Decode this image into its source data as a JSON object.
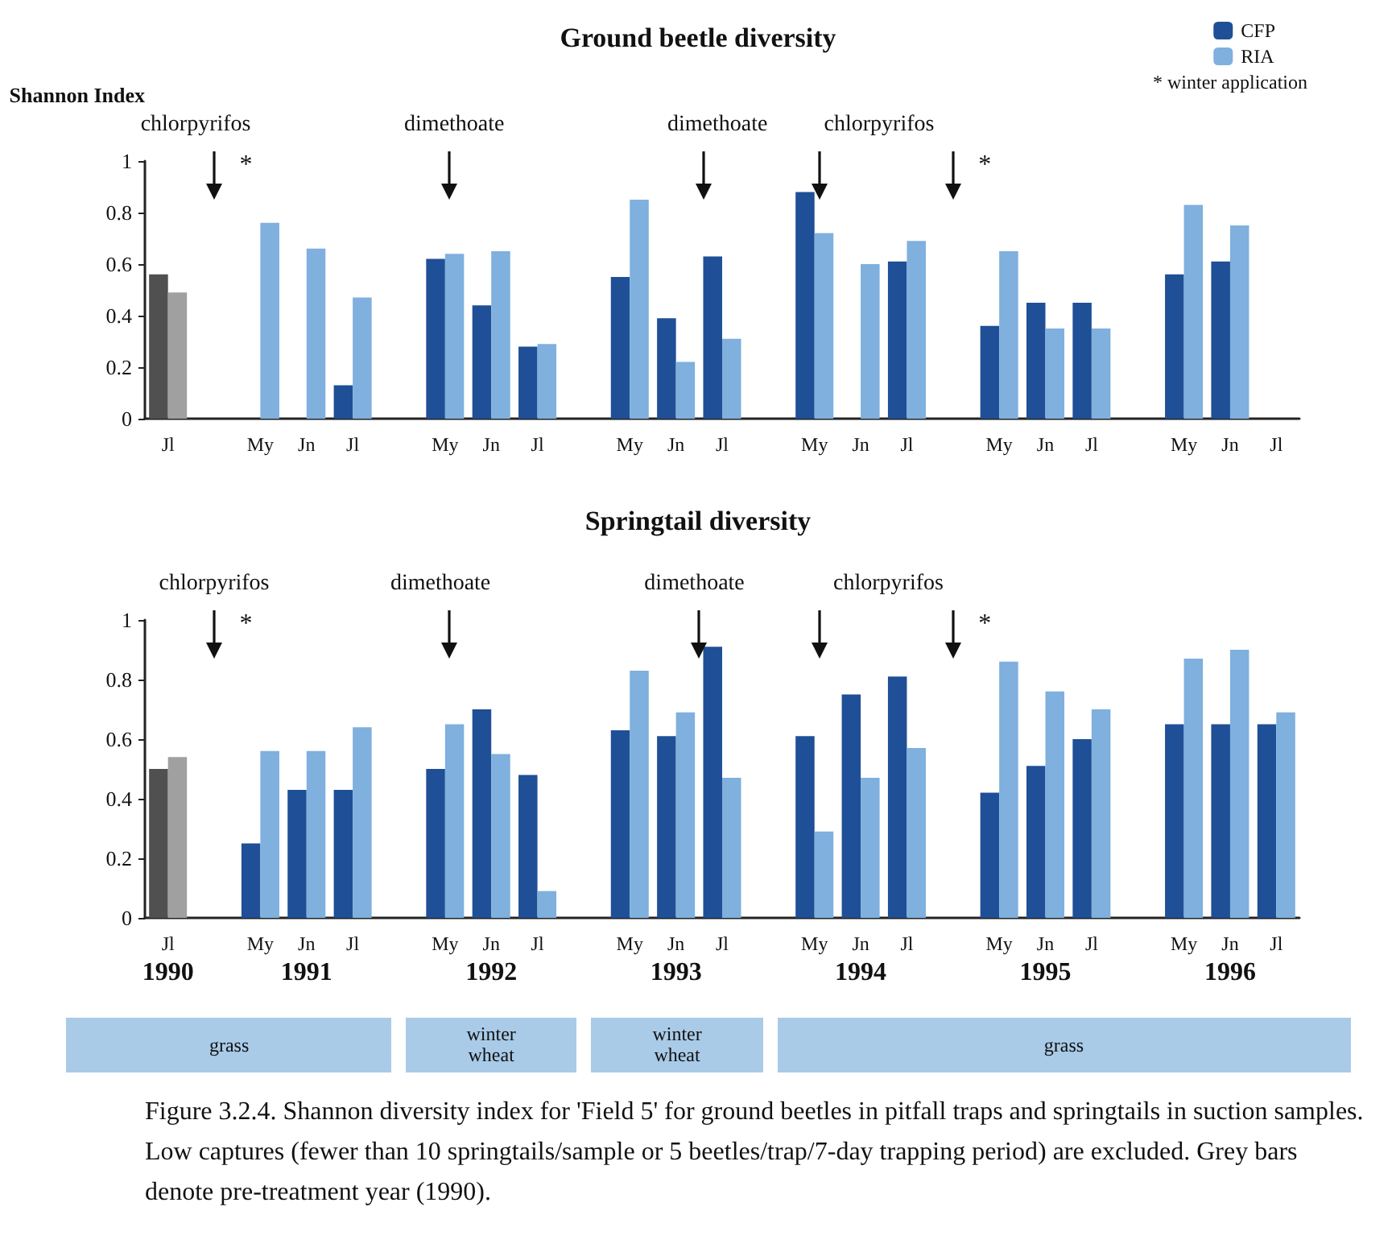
{
  "chart_data": [
    {
      "type": "bar",
      "title": "Ground beetle diversity",
      "ylabel": "Shannon Index",
      "categories": [
        "Jl",
        null,
        "My",
        "Jn",
        "Jl",
        null,
        "My",
        "Jn",
        "Jl",
        null,
        "My",
        "Jn",
        "Jl",
        null,
        "My",
        "Jn",
        "Jl",
        null,
        "My",
        "Jn",
        "Jl",
        null,
        "My",
        "Jn",
        "Jl"
      ],
      "series": [
        {
          "name": "CFP",
          "color": "#1f4f96",
          "colors": [
            "#505050",
            "#1f4f96",
            "#1f4f96",
            "#1f4f96",
            "#1f4f96",
            "#1f4f96",
            "#1f4f96",
            "#1f4f96",
            "#1f4f96",
            "#1f4f96",
            "#1f4f96",
            "#1f4f96",
            "#1f4f96",
            "#1f4f96",
            "#1f4f96",
            "#1f4f96",
            "#1f4f96",
            "#1f4f96",
            "#1f4f96",
            "#1f4f96",
            "#1f4f96",
            "#1f4f96",
            "#1f4f96",
            "#1f4f96",
            "#1f4f96"
          ],
          "values": [
            0.56,
            null,
            null,
            null,
            0.13,
            null,
            0.62,
            0.44,
            0.28,
            null,
            0.55,
            0.39,
            0.63,
            null,
            0.88,
            null,
            0.61,
            null,
            0.36,
            0.45,
            0.45,
            null,
            0.56,
            0.61,
            null
          ]
        },
        {
          "name": "RIA",
          "color": "#7fb0de",
          "colors": [
            "#a0a0a0",
            "#7fb0de",
            "#7fb0de",
            "#7fb0de",
            "#7fb0de",
            "#7fb0de",
            "#7fb0de",
            "#7fb0de",
            "#7fb0de",
            "#7fb0de",
            "#7fb0de",
            "#7fb0de",
            "#7fb0de",
            "#7fb0de",
            "#7fb0de",
            "#7fb0de",
            "#7fb0de",
            "#7fb0de",
            "#7fb0de",
            "#7fb0de",
            "#7fb0de",
            "#7fb0de",
            "#7fb0de",
            "#7fb0de",
            "#7fb0de"
          ],
          "values": [
            0.49,
            null,
            0.76,
            0.66,
            0.47,
            null,
            0.64,
            0.65,
            0.29,
            null,
            0.85,
            0.22,
            0.31,
            null,
            0.72,
            0.6,
            0.69,
            null,
            0.65,
            0.35,
            0.35,
            null,
            0.83,
            0.75,
            null
          ]
        }
      ],
      "ylim": [
        0,
        1
      ],
      "yticks": [
        0,
        0.2,
        0.4,
        0.6,
        0.8,
        1
      ],
      "grid": false,
      "legend": "top right",
      "annotations": [
        "chlorpyrifos",
        "*",
        "dimethoate",
        "dimethoate",
        "chlorpyrifos",
        "*",
        "* winter application"
      ]
    },
    {
      "type": "bar",
      "title": "Springtail diversity",
      "categories": [
        "Jl\n1990",
        null,
        "My",
        "Jn\n1991",
        "Jl",
        null,
        "My",
        "Jn\n1992",
        "Jl",
        null,
        "My",
        "Jn\n1993",
        "Jl",
        null,
        "My",
        "Jn\n1994",
        "Jl",
        null,
        "My",
        "Jn\n1995",
        "Jl",
        null,
        "My",
        "Jn\n1996",
        "Jl"
      ],
      "series": [
        {
          "color": "#1f4f96",
          "colors": [
            "#505050",
            "#1f4f96",
            "#1f4f96",
            "#1f4f96",
            "#1f4f96",
            "#1f4f96",
            "#1f4f96",
            "#1f4f96",
            "#1f4f96",
            "#1f4f96",
            "#1f4f96",
            "#1f4f96",
            "#1f4f96",
            "#1f4f96",
            "#1f4f96",
            "#1f4f96",
            "#1f4f96",
            "#1f4f96",
            "#1f4f96",
            "#1f4f96",
            "#1f4f96",
            "#1f4f96",
            "#1f4f96",
            "#1f4f96",
            "#1f4f96"
          ],
          "values": [
            0.5,
            null,
            0.25,
            0.43,
            0.43,
            null,
            0.5,
            0.7,
            0.48,
            null,
            0.63,
            0.61,
            0.91,
            null,
            0.61,
            0.75,
            0.81,
            null,
            0.42,
            0.51,
            0.6,
            null,
            0.65,
            0.65,
            0.65
          ]
        },
        {
          "color": "#7fb0de",
          "colors": [
            "#a0a0a0",
            "#7fb0de",
            "#7fb0de",
            "#7fb0de",
            "#7fb0de",
            "#7fb0de",
            "#7fb0de",
            "#7fb0de",
            "#7fb0de",
            "#7fb0de",
            "#7fb0de",
            "#7fb0de",
            "#7fb0de",
            "#7fb0de",
            "#7fb0de",
            "#7fb0de",
            "#7fb0de",
            "#7fb0de",
            "#7fb0de",
            "#7fb0de",
            "#7fb0de",
            "#7fb0de",
            "#7fb0de",
            "#7fb0de",
            "#7fb0de"
          ],
          "values": [
            0.54,
            null,
            0.56,
            0.56,
            0.64,
            null,
            0.65,
            0.55,
            0.09,
            null,
            0.83,
            0.69,
            0.47,
            null,
            0.29,
            0.47,
            0.57,
            null,
            0.86,
            0.76,
            0.7,
            null,
            0.87,
            0.9,
            0.69
          ]
        }
      ],
      "ylim": [
        0,
        1
      ],
      "yticks": [
        0,
        0.2,
        0.4,
        0.6,
        0.8,
        1
      ],
      "grid": false,
      "legend": false,
      "annotations": [
        "chlorpyrifos",
        "*",
        "dimethoate",
        "dimethoate",
        "chlorpyrifos",
        "*",
        "grass",
        "winter wheat",
        "winter wheat",
        "grass",
        "Figure 3.2.4. Shannon diversity index for 'Field 5' for ground beetles in pitfall traps and springtails in suction samples.  Low captures (fewer than 10 springtails/sample or 5 beetles/trap/7-day trapping period) are excluded.  Grey bars denote pre-treatment year (1990)."
      ]
    }
  ]
}
